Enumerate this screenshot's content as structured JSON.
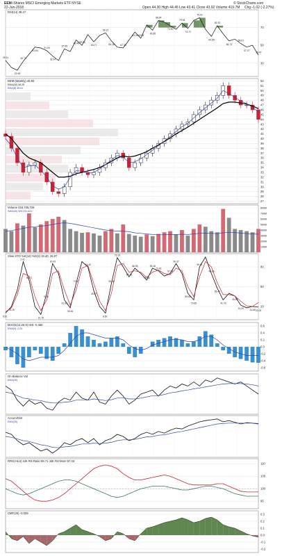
{
  "header": {
    "ticker": "EEM",
    "name": "iShares MSCI Emerging Markets ETF",
    "exchange": "NYSE",
    "date": "22-Jun-2018",
    "open": "Open 44.30",
    "high": "High 44.46",
    "low": "Low 43.41",
    "close": "Close 43.92",
    "volume": "Volume 419.7M",
    "change": "Chg -1.02 (-2.27%)",
    "brand": "© StockCharts.com"
  },
  "colors": {
    "up": "#222222",
    "down": "#cc2233",
    "ema": "#3344aa",
    "ma_black": "#000000",
    "rsi_fill": "#4e7c40",
    "macd_bar": "#3a8fcf",
    "cmf_pos": "#4e7a3c",
    "cmf_neg": "#9a5a5a"
  },
  "chart_data": [
    {
      "type": "line",
      "panel": "rsi",
      "title": "RSI(14) 39.47",
      "y_ticks": [
        30,
        50,
        70
      ],
      "ylim": [
        15,
        90
      ],
      "thresholds": [
        30,
        70
      ],
      "x": [
        0,
        3,
        6,
        9,
        12,
        15,
        18,
        21,
        24,
        27,
        30,
        33,
        36,
        39,
        42,
        45,
        48,
        51,
        54,
        57,
        60,
        63,
        66,
        69,
        72,
        75,
        78,
        81,
        84,
        87,
        90,
        93,
        96,
        99,
        102,
        105,
        108,
        111,
        114,
        117,
        120,
        123,
        126,
        129
      ],
      "values": [
        33,
        25,
        22,
        32,
        40,
        48,
        47,
        44,
        38,
        33,
        46,
        43,
        56,
        50,
        62,
        54,
        61,
        64,
        55,
        48,
        47,
        56,
        65,
        58,
        73,
        67,
        78,
        76,
        72,
        68,
        75,
        69,
        78,
        81,
        68,
        60,
        72,
        63,
        55,
        57,
        52,
        48,
        50,
        39
      ],
      "labels": [
        "25.11",
        "22.69",
        "40.72",
        "41.64",
        "31.04",
        "32.04",
        "37.65",
        "46.46",
        "59.26",
        "53.77",
        "65.21",
        "64.18",
        "67.38",
        "64.05",
        "43.06",
        "43.65",
        "68.94",
        "74.90",
        "79.34",
        "74.72",
        "75.91",
        "64.55",
        "81.92",
        "66.74",
        "59.67",
        "47.27",
        "39.47"
      ]
    },
    {
      "type": "candlestick",
      "panel": "price",
      "title": "EEM (Weekly) 43.92",
      "legend": [
        "EMA(30) 46.25",
        "EMA(8) 45.61"
      ],
      "y_ticks": [
        27,
        28,
        29,
        30,
        31,
        32,
        33,
        34,
        35,
        36,
        37,
        38,
        39,
        40,
        41,
        42,
        43,
        44,
        45,
        46,
        47,
        48,
        49,
        50,
        51,
        52
      ],
      "ylim": [
        26.5,
        52.5
      ],
      "x_labels": [
        "J",
        "A",
        "S",
        "O",
        "N",
        "D",
        "16",
        "F",
        "M",
        "A",
        "M",
        "J",
        "J",
        "A",
        "S",
        "O",
        "N",
        "D",
        "17",
        "F",
        "M",
        "A",
        "M",
        "J",
        "J",
        "A",
        "S",
        "O",
        "N",
        "D",
        "18",
        "F",
        "M",
        "A",
        "M",
        "J"
      ],
      "x": [
        0,
        3,
        6,
        9,
        12,
        15,
        18,
        21,
        24,
        27,
        30,
        33,
        36,
        39,
        42,
        45,
        48,
        51,
        54,
        57,
        60,
        63,
        66,
        69,
        72,
        75,
        78,
        81,
        84,
        87,
        90,
        93,
        96,
        99,
        102,
        105,
        108,
        111,
        114,
        117,
        120,
        123,
        126,
        129
      ],
      "close": [
        40.5,
        38,
        35,
        33,
        34.5,
        35,
        33,
        31,
        29,
        28.6,
        30,
        33,
        34,
        33,
        32.5,
        33,
        34,
        35,
        36,
        37,
        36,
        34,
        35,
        36,
        37,
        38,
        39,
        40,
        41,
        42,
        43,
        43.5,
        45,
        46,
        47,
        48,
        49,
        51,
        49,
        48,
        47,
        47,
        46,
        44
      ],
      "ema_black": [
        41,
        40,
        38.5,
        37,
        36,
        35.5,
        35,
        34,
        33,
        32,
        32,
        32.2,
        32.7,
        33,
        33.3,
        33.6,
        34,
        34.6,
        35.3,
        36,
        36.4,
        36.2,
        36.4,
        36.8,
        37.3,
        38,
        38.7,
        39.4,
        40.2,
        41,
        41.7,
        42.4,
        43.2,
        44,
        44.8,
        45.6,
        46.4,
        47.3,
        47.6,
        47.6,
        47.4,
        47.2,
        46.8,
        46.25
      ],
      "ema_blue": [
        40,
        38.5,
        36,
        34,
        34.3,
        34.5,
        33.5,
        32,
        30.2,
        29.5,
        30,
        32,
        33.4,
        33.2,
        32.8,
        33,
        33.7,
        34.6,
        35.6,
        36.5,
        36.2,
        35,
        35.2,
        35.8,
        36.7,
        37.6,
        38.5,
        39.5,
        40.5,
        41.5,
        42.5,
        43.2,
        44.3,
        45.4,
        46.4,
        47.4,
        48.4,
        50,
        49.4,
        48.6,
        47.8,
        47.3,
        46.5,
        45.61
      ]
    },
    {
      "type": "bar",
      "panel": "volume",
      "title": "Volume 419,705,728",
      "legend": "SMA(30) 325,231,624",
      "y_ticks": [
        "100M",
        "200M",
        "300M",
        "400M",
        "500M",
        "600M",
        "700M",
        "800M"
      ],
      "ylim": [
        0,
        850
      ],
      "x": [
        0,
        3,
        6,
        9,
        12,
        15,
        18,
        21,
        24,
        27,
        30,
        33,
        36,
        39,
        42,
        45,
        48,
        51,
        54,
        57,
        60,
        63,
        66,
        69,
        72,
        75,
        78,
        81,
        84,
        87,
        90,
        93,
        96,
        99,
        102,
        105,
        108,
        111,
        114,
        117,
        120,
        123,
        126,
        129
      ],
      "values": [
        420,
        380,
        520,
        480,
        700,
        450,
        500,
        560,
        600,
        640,
        580,
        420,
        380,
        350,
        360,
        340,
        300,
        380,
        420,
        340,
        500,
        330,
        300,
        280,
        320,
        290,
        330,
        360,
        380,
        320,
        400,
        300,
        420,
        500,
        460,
        380,
        360,
        780,
        620,
        420,
        400,
        380,
        360,
        420
      ],
      "sma": [
        380,
        390,
        410,
        430,
        450,
        460,
        470,
        480,
        500,
        520,
        530,
        520,
        500,
        480,
        460,
        440,
        420,
        400,
        390,
        380,
        380,
        370,
        350,
        340,
        330,
        320,
        315,
        315,
        320,
        320,
        325,
        320,
        330,
        340,
        345,
        340,
        335,
        350,
        360,
        355,
        345,
        335,
        330,
        325
      ]
    },
    {
      "type": "line",
      "panel": "stochastic",
      "title": "Slow STO %K(14) %D(3) 19.40, 26.07",
      "y_ticks": [
        20,
        50,
        80
      ],
      "ylim": [
        0,
        100
      ],
      "x": [
        0,
        3,
        6,
        9,
        12,
        15,
        18,
        21,
        24,
        27,
        30,
        33,
        36,
        39,
        42,
        45,
        48,
        51,
        54,
        57,
        60,
        63,
        66,
        69,
        72,
        75,
        78,
        81,
        84,
        87,
        90,
        93,
        96,
        99,
        102,
        105,
        108,
        111,
        114,
        117,
        120,
        123,
        126,
        129
      ],
      "k": [
        10,
        20,
        45,
        88,
        60,
        20,
        8,
        40,
        85,
        70,
        30,
        18,
        55,
        88,
        80,
        44,
        20,
        10,
        55,
        94,
        80,
        65,
        78,
        70,
        60,
        78,
        74,
        66,
        70,
        85,
        70,
        40,
        30,
        80,
        95,
        70,
        48,
        30,
        40,
        36,
        22,
        18,
        20,
        19
      ],
      "d": [
        12,
        18,
        38,
        70,
        66,
        35,
        14,
        30,
        70,
        74,
        45,
        22,
        45,
        78,
        82,
        55,
        28,
        14,
        40,
        82,
        85,
        72,
        74,
        72,
        64,
        72,
        75,
        70,
        68,
        78,
        74,
        50,
        35,
        65,
        88,
        80,
        56,
        38,
        38,
        36,
        28,
        21,
        20,
        26
      ],
      "labels": [
        "8.61",
        "25.26",
        "2.42",
        "90.71",
        "21.75",
        "9.94",
        "20.09",
        "61.69",
        "95.81",
        "73.47",
        "64.40",
        "25.07",
        "8.65",
        "94.06",
        "79.19",
        "87.36",
        "56.95",
        "75.96",
        "95.18",
        "73.16",
        "97.42",
        "90.37",
        "89.85",
        "79.65",
        "95.81",
        "46.36",
        "56.47",
        "41.76",
        "26.87",
        "31.25",
        "24.66",
        "22.02"
      ]
    },
    {
      "type": "bar",
      "panel": "macd",
      "title": "MACD(12,26,9) Hist -0.460",
      "legend": "EMA(9) -0.25",
      "y_ticks": [
        -0.6,
        -0.4,
        -0.2,
        0,
        0.2,
        0.4,
        0.6
      ],
      "ylim": [
        -0.7,
        0.7
      ],
      "x": [
        0,
        3,
        6,
        9,
        12,
        15,
        18,
        21,
        24,
        27,
        30,
        33,
        36,
        39,
        42,
        45,
        48,
        51,
        54,
        57,
        60,
        63,
        66,
        69,
        72,
        75,
        78,
        81,
        84,
        87,
        90,
        93,
        96,
        99,
        102,
        105,
        108,
        111,
        114,
        117,
        120,
        123,
        126,
        129
      ],
      "hist": [
        -0.1,
        -0.3,
        -0.5,
        -0.6,
        -0.3,
        -0.1,
        -0.2,
        -0.35,
        -0.4,
        -0.2,
        0.1,
        0.4,
        0.6,
        0.5,
        0.3,
        0.2,
        0.1,
        0.15,
        0.25,
        0.3,
        0.1,
        -0.2,
        -0.3,
        -0.2,
        0.0,
        0.15,
        0.2,
        0.25,
        0.3,
        0.25,
        0.2,
        0.1,
        0.15,
        0.3,
        0.45,
        0.35,
        0.1,
        -0.1,
        -0.2,
        -0.3,
        -0.35,
        -0.4,
        -0.45,
        -0.46
      ],
      "signal": [
        0,
        -0.1,
        -0.2,
        -0.35,
        -0.4,
        -0.35,
        -0.3,
        -0.3,
        -0.3,
        -0.25,
        -0.1,
        0.1,
        0.3,
        0.4,
        0.4,
        0.35,
        0.3,
        0.25,
        0.25,
        0.25,
        0.2,
        0.05,
        -0.05,
        -0.1,
        -0.05,
        0.05,
        0.1,
        0.15,
        0.2,
        0.22,
        0.2,
        0.15,
        0.15,
        0.2,
        0.3,
        0.3,
        0.2,
        0.05,
        -0.05,
        -0.15,
        -0.2,
        -0.25,
        -0.25,
        -0.25
      ]
    },
    {
      "type": "line",
      "panel": "obv",
      "title": "On Balance Vol",
      "legend": "EMA(30)",
      "ylim": [
        0,
        100
      ],
      "x": [
        0,
        3,
        6,
        9,
        12,
        15,
        18,
        21,
        24,
        27,
        30,
        33,
        36,
        39,
        42,
        45,
        48,
        51,
        54,
        57,
        60,
        63,
        66,
        69,
        72,
        75,
        78,
        81,
        84,
        87,
        90,
        93,
        96,
        99,
        102,
        105,
        108,
        111,
        114,
        117,
        120,
        123,
        126,
        129
      ],
      "values": [
        70,
        60,
        35,
        20,
        35,
        25,
        30,
        15,
        10,
        30,
        40,
        35,
        55,
        40,
        35,
        55,
        30,
        25,
        45,
        60,
        45,
        25,
        35,
        50,
        55,
        60,
        45,
        60,
        70,
        65,
        75,
        70,
        80,
        70,
        85,
        80,
        90,
        85,
        80,
        75,
        80,
        70,
        60,
        50
      ],
      "ema": [
        55,
        52,
        46,
        40,
        38,
        35,
        34,
        30,
        28,
        28,
        30,
        31,
        35,
        35,
        35,
        38,
        36,
        34,
        36,
        40,
        41,
        38,
        38,
        40,
        43,
        46,
        46,
        49,
        53,
        55,
        58,
        60,
        63,
        65,
        68,
        70,
        73,
        75,
        76,
        76,
        76,
        75,
        73,
        70
      ]
    },
    {
      "type": "line",
      "panel": "accum_dist",
      "title": "Accum/Dist",
      "legend": "EMA(30)",
      "ylim": [
        0,
        100
      ],
      "x": [
        0,
        3,
        6,
        9,
        12,
        15,
        18,
        21,
        24,
        27,
        30,
        33,
        36,
        39,
        42,
        45,
        48,
        51,
        54,
        57,
        60,
        63,
        66,
        69,
        72,
        75,
        78,
        81,
        84,
        87,
        90,
        93,
        96,
        99,
        102,
        105,
        108,
        111,
        114,
        117,
        120,
        123,
        126,
        129
      ],
      "values": [
        60,
        55,
        40,
        30,
        35,
        25,
        15,
        20,
        10,
        20,
        35,
        30,
        40,
        45,
        35,
        45,
        30,
        40,
        45,
        55,
        50,
        40,
        45,
        55,
        60,
        55,
        62,
        58,
        65,
        70,
        68,
        75,
        80,
        85,
        88,
        90,
        92,
        85,
        88,
        84,
        80,
        83,
        82,
        80
      ],
      "ema": [
        50,
        48,
        44,
        40,
        38,
        34,
        30,
        28,
        24,
        23,
        25,
        26,
        29,
        32,
        32,
        34,
        33,
        34,
        36,
        40,
        42,
        42,
        43,
        46,
        49,
        50,
        53,
        54,
        57,
        60,
        62,
        65,
        68,
        71,
        74,
        77,
        80,
        81,
        82,
        82,
        82,
        82,
        82,
        81
      ]
    },
    {
      "type": "line",
      "panel": "rrg",
      "title": "RRG(HUJ) JdK RS-Ratio 98.71 JdK RS-Mom 97.03",
      "y_ticks": [
        95,
        100,
        105,
        110
      ],
      "ylim": [
        92,
        112
      ],
      "thresholds": [
        100
      ],
      "x": [
        0,
        3,
        6,
        9,
        12,
        15,
        18,
        21,
        24,
        27,
        30,
        33,
        36,
        39,
        42,
        45,
        48,
        51,
        54,
        57,
        60,
        63,
        66,
        69,
        72,
        75,
        78,
        81,
        84,
        87,
        90,
        93,
        96,
        99,
        102,
        105,
        108,
        111,
        114,
        117,
        120,
        123,
        126,
        129
      ],
      "ratio": [
        104,
        103,
        101,
        99,
        97,
        95.5,
        95,
        95,
        95.5,
        96.5,
        98,
        100,
        102,
        104,
        106,
        108,
        109,
        109.5,
        109,
        108,
        106,
        104.5,
        103.5,
        103.5,
        104,
        104.5,
        105,
        105.5,
        105,
        104,
        103,
        102,
        101.5,
        101.5,
        101.5,
        101.5,
        102,
        102,
        101,
        100,
        99,
        98.7,
        98.7,
        98.7
      ],
      "mom": [
        100,
        99,
        98,
        97.5,
        98,
        99,
        100,
        101,
        102,
        103,
        103.5,
        103.5,
        103,
        102,
        101,
        100,
        99,
        98,
        97,
        96.5,
        97,
        98,
        99,
        100,
        100.5,
        101,
        101,
        101,
        100.5,
        100,
        99.5,
        99.5,
        100,
        100.5,
        101,
        101,
        100.5,
        100,
        99,
        98,
        97.5,
        97,
        97,
        97.03
      ]
    },
    {
      "type": "area",
      "panel": "cmf",
      "title": "CMF(20) -0.029",
      "y_ticks": [
        -0.2,
        -0.1,
        0.0,
        0.1,
        0.2,
        0.3
      ],
      "ylim": [
        -0.25,
        0.35
      ],
      "x": [
        0,
        3,
        6,
        9,
        12,
        15,
        18,
        21,
        24,
        27,
        30,
        33,
        36,
        39,
        42,
        45,
        48,
        51,
        54,
        57,
        60,
        63,
        66,
        69,
        72,
        75,
        78,
        81,
        84,
        87,
        90,
        93,
        96,
        99,
        102,
        105,
        108,
        111,
        114,
        117,
        120,
        123,
        126,
        129
      ],
      "values": [
        0.05,
        -0.05,
        -0.08,
        -0.02,
        -0.12,
        -0.05,
        -0.1,
        -0.15,
        -0.08,
        0.02,
        0.05,
        0.1,
        0.15,
        0.08,
        0.05,
        0.02,
        -0.02,
        -0.08,
        -0.05,
        0.05,
        0.02,
        -0.05,
        -0.08,
        0.02,
        0.1,
        0.12,
        0.15,
        0.18,
        0.2,
        0.22,
        0.25,
        0.22,
        0.18,
        0.2,
        0.24,
        0.26,
        0.22,
        0.15,
        0.12,
        0.1,
        0.06,
        0.02,
        -0.01,
        -0.029
      ]
    }
  ]
}
